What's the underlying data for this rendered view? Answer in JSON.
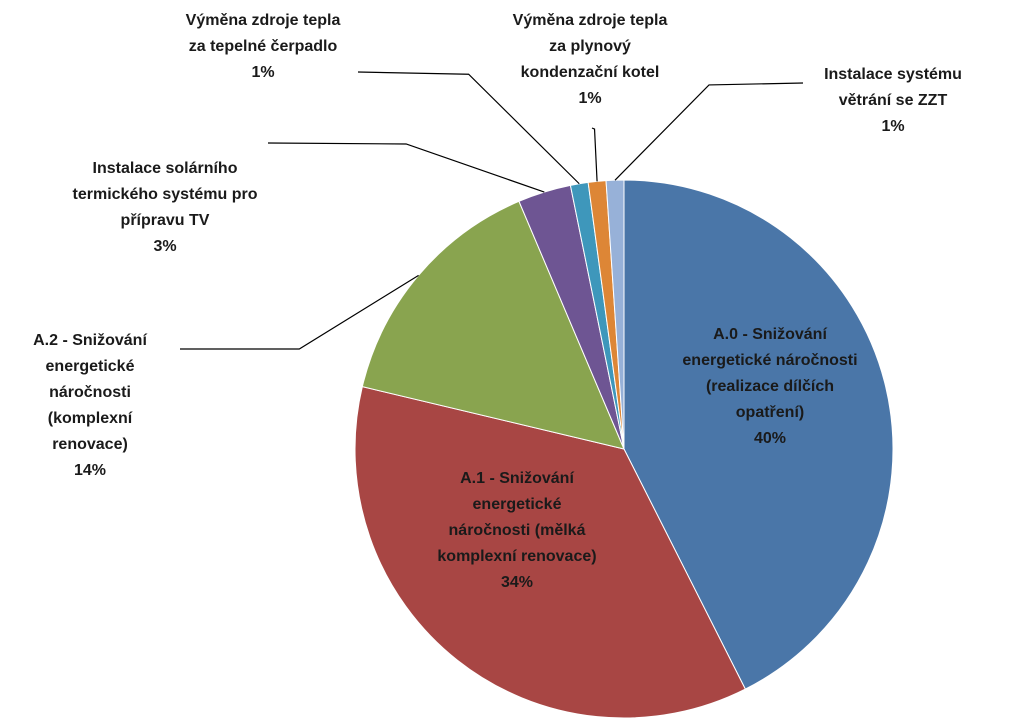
{
  "chart_data": {
    "type": "pie",
    "categories": [
      "A.0 - Snižování energetické náročnosti (realizace dílčích opatření)",
      "A.1 - Snižování energetické náročnosti (mělká komplexní renovace)",
      "A.2 - Snižování energetické náročnosti (komplexní renovace)",
      "Instalace solárního termického systému pro přípravu TV",
      "Výměna zdroje tepla za tepelné čerpadlo",
      "Výměna zdroje tepla za plynový kondenzační kotel",
      "Instalace systému větrání se ZZT"
    ],
    "values": [
      40,
      34,
      14,
      3,
      1,
      1,
      1
    ],
    "value_labels": [
      "40%",
      "34%",
      "14%",
      "3%",
      "1%",
      "1%",
      "1%"
    ],
    "colors": [
      "#4a76a8",
      "#a84644",
      "#89a44f",
      "#6e5593",
      "#3e97bb",
      "#dd8636",
      "#97b1d8"
    ]
  }
}
